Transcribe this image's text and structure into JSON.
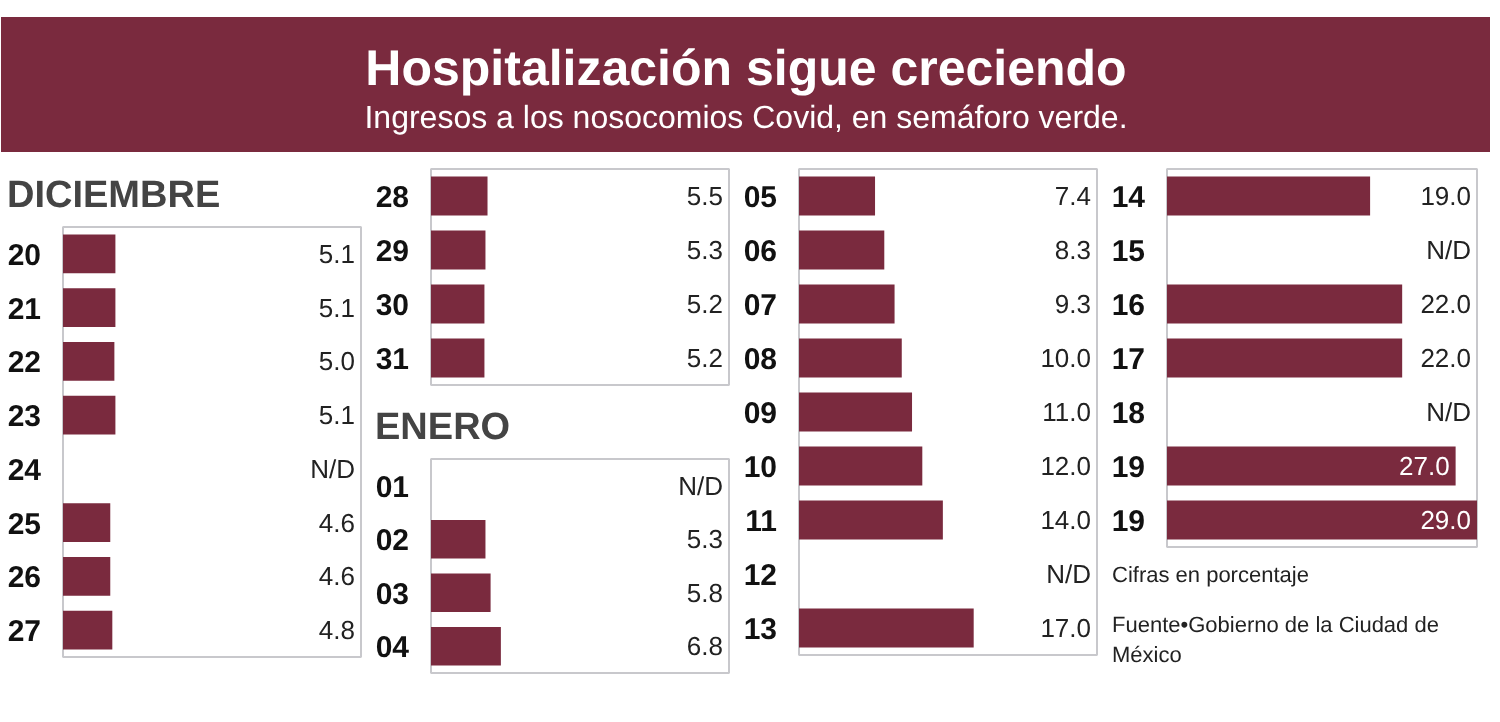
{
  "chart_data": [
    {
      "type": "other",
      "title": "Hospitalización sigue creciendo",
      "subtitle": "Ingresos a los nosocomios Covid, en semáforo verde."
    },
    {
      "type": "bar",
      "orientation": "horizontal",
      "title": "DICIEMBRE",
      "categories": [
        "20",
        "21",
        "22",
        "23",
        "24",
        "25",
        "26",
        "27"
      ],
      "values": [
        5.1,
        5.1,
        5.0,
        5.1,
        null,
        4.6,
        4.6,
        4.8
      ],
      "value_labels": [
        "5.1",
        "5.1",
        "5.0",
        "5.1",
        "N/D",
        "4.6",
        "4.6",
        "4.8"
      ],
      "color": "#7a2a3e",
      "xlim": [
        0,
        29
      ],
      "tick_labels": "y",
      "grid": false
    },
    {
      "type": "bar",
      "orientation": "horizontal",
      "categories": [
        "28",
        "29",
        "30",
        "31"
      ],
      "values": [
        5.5,
        5.3,
        5.2,
        5.2
      ],
      "value_labels": [
        "5.5",
        "5.3",
        "5.2",
        "5.2"
      ],
      "color": "#7a2a3e",
      "xlim": [
        0,
        29
      ],
      "tick_labels": "y",
      "grid": false
    },
    {
      "type": "bar",
      "orientation": "horizontal",
      "title": "ENERO",
      "categories": [
        "01",
        "02",
        "03",
        "04"
      ],
      "values": [
        null,
        5.3,
        5.8,
        6.8
      ],
      "value_labels": [
        "N/D",
        "5.3",
        "5.8",
        "6.8"
      ],
      "color": "#7a2a3e",
      "xlim": [
        0,
        29
      ],
      "tick_labels": "y",
      "grid": false
    },
    {
      "type": "bar",
      "orientation": "horizontal",
      "categories": [
        "05",
        "06",
        "07",
        "08",
        "09",
        "10",
        "11",
        "12",
        "13"
      ],
      "values": [
        7.4,
        8.3,
        9.3,
        10.0,
        11.0,
        12.0,
        14.0,
        null,
        17.0
      ],
      "value_labels": [
        "7.4",
        "8.3",
        "9.3",
        "10.0",
        "11.0",
        "12.0",
        "14.0",
        "N/D",
        "17.0"
      ],
      "color": "#7a2a3e",
      "xlim": [
        0,
        29
      ],
      "tick_labels": "y",
      "grid": false
    },
    {
      "type": "bar",
      "orientation": "horizontal",
      "categories": [
        "14",
        "15",
        "16",
        "17",
        "18",
        "19",
        "19"
      ],
      "values": [
        19.0,
        null,
        22.0,
        22.0,
        null,
        27.0,
        29.0
      ],
      "value_labels": [
        "19.0",
        "N/D",
        "22.0",
        "22.0",
        "N/D",
        "27.0",
        "29.0"
      ],
      "color": "#7a2a3e",
      "xlim": [
        0,
        29
      ],
      "tick_labels": "y",
      "grid": false,
      "annotations": [
        "Cifras en porcentaje",
        "Fuente•Gobierno de la Ciudad de México"
      ]
    }
  ]
}
